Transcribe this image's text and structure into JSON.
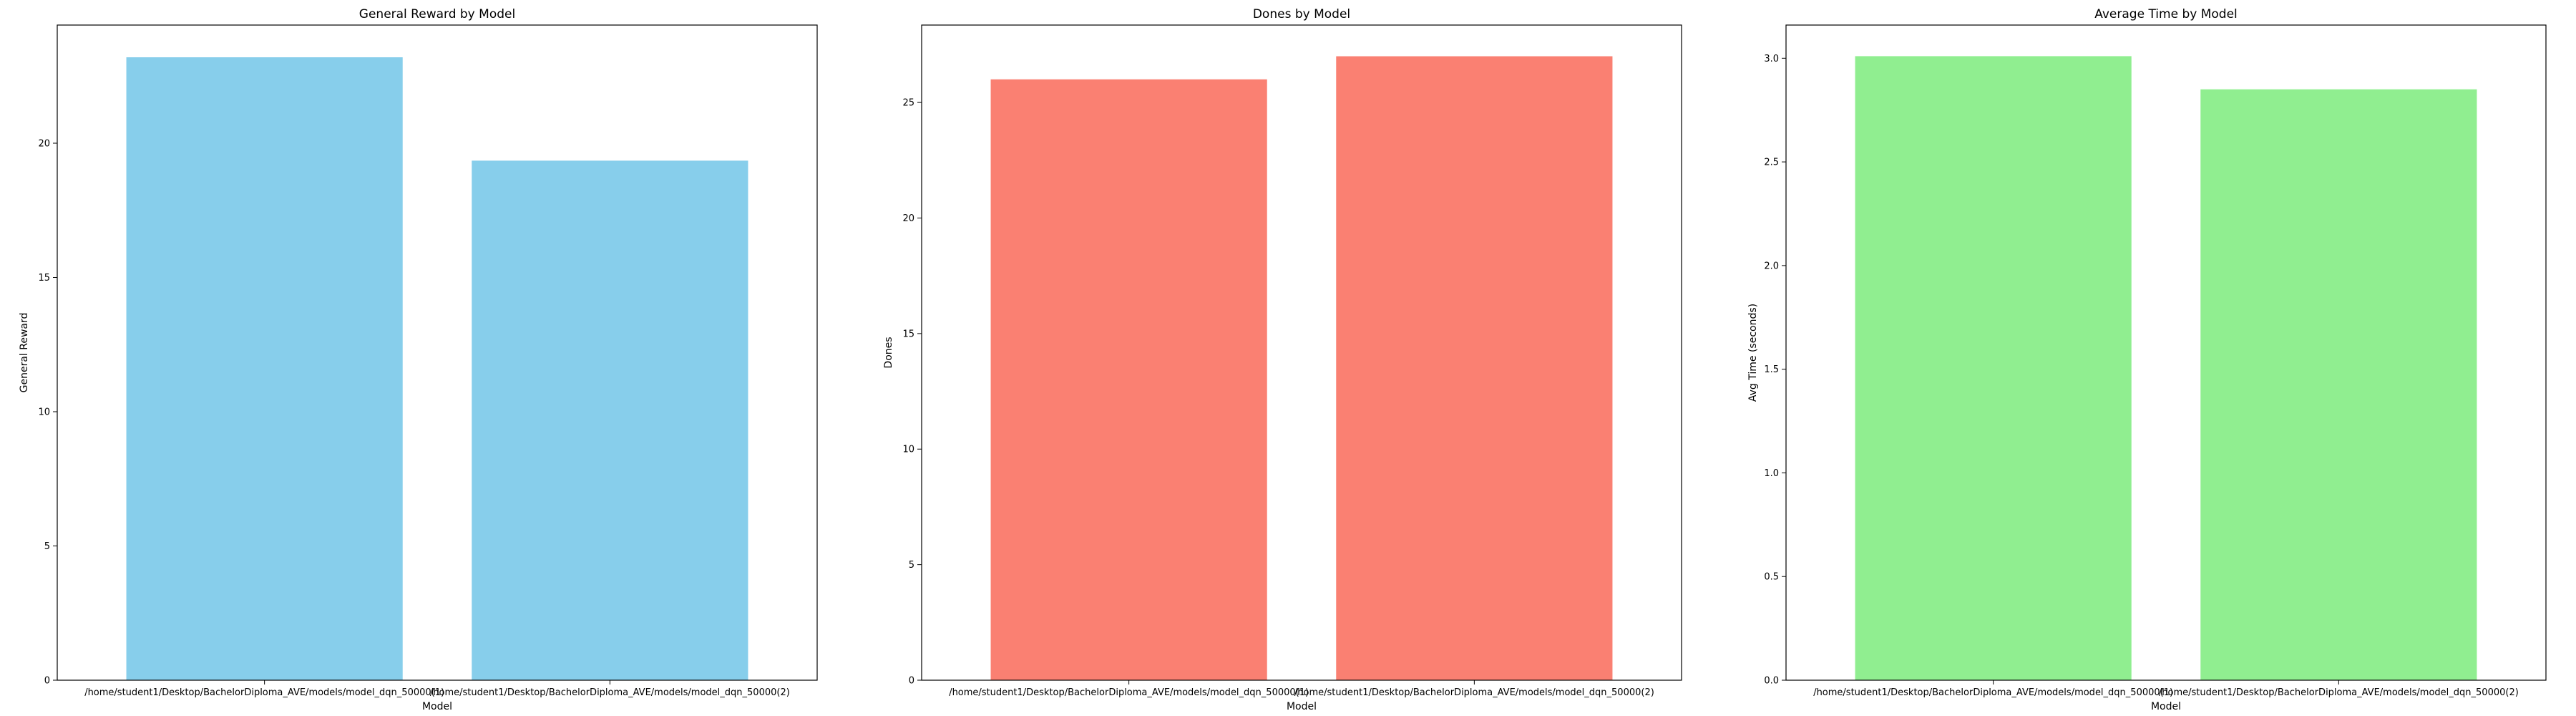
{
  "chart_data": [
    {
      "type": "bar",
      "title": "General Reward by Model",
      "xlabel": "Model",
      "ylabel": "General Reward",
      "categories": [
        "/home/student1/Desktop/BachelorDiploma_AVE/models/model_dqn_50000(1)",
        "/home/student1/Desktop/BachelorDiploma_AVE/models/model_dqn_50000(2)"
      ],
      "values": [
        23.2,
        19.35
      ],
      "ylim": [
        0,
        24.4
      ],
      "yticks": [
        0,
        5,
        10,
        15,
        20
      ],
      "color": "#87ceeb",
      "grid": false
    },
    {
      "type": "bar",
      "title": "Dones by Model",
      "xlabel": "Model",
      "ylabel": "Dones",
      "categories": [
        "/home/student1/Desktop/BachelorDiploma_AVE/models/model_dqn_50000(1)",
        "/home/student1/Desktop/BachelorDiploma_AVE/models/model_dqn_50000(2)"
      ],
      "values": [
        26,
        27
      ],
      "ylim": [
        0,
        28.35
      ],
      "yticks": [
        0,
        5,
        10,
        15,
        20,
        25
      ],
      "color": "#fa8072",
      "grid": false
    },
    {
      "type": "bar",
      "title": "Average Time by Model",
      "xlabel": "Model",
      "ylabel": "Avg Time (seconds)",
      "categories": [
        "/home/student1/Desktop/BachelorDiploma_AVE/models/model_dqn_50000(1)",
        "/home/student1/Desktop/BachelorDiploma_AVE/models/model_dqn_50000(2)"
      ],
      "values": [
        3.01,
        2.85
      ],
      "ylim": [
        0,
        3.16
      ],
      "yticks": [
        0.0,
        0.5,
        1.0,
        1.5,
        2.0,
        2.5,
        3.0
      ],
      "ytick_format": "fixed1",
      "color": "#90ee90",
      "grid": false
    }
  ]
}
